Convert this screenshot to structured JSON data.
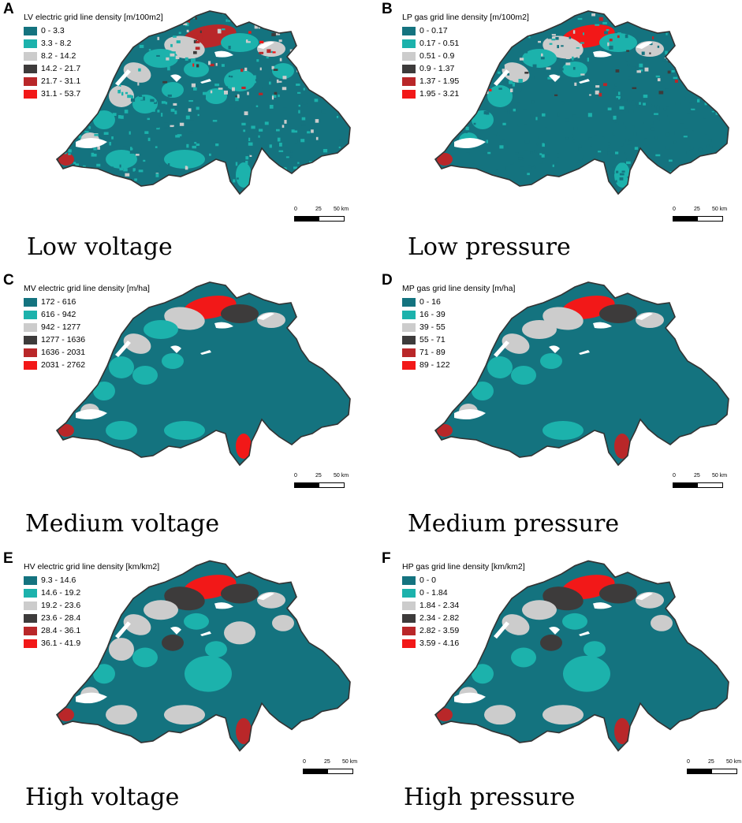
{
  "colors": {
    "c0": "#14737f",
    "c1": "#1cb2ac",
    "c2": "#cccccc",
    "c3": "#3d3b3b",
    "c4": "#b92729",
    "c5": "#f21818",
    "lake": "#ffffff",
    "border": "#333333"
  },
  "scalebar": {
    "l0": "0",
    "l25": "25",
    "l50": "50 km"
  },
  "panels": [
    {
      "letter": "A",
      "title": "LV electric grid line density [m/100m2]",
      "caption": "Low voltage",
      "classes": [
        "0 - 3.3",
        "3.3 - 8.2",
        "8.2 - 14.2",
        "14.2 - 21.7",
        "21.7 - 31.1",
        "31.1 - 53.7"
      ]
    },
    {
      "letter": "B",
      "title": "LP gas grid line density [m/100m2]",
      "caption": "Low pressure",
      "classes": [
        "0 - 0.17",
        "0.17 - 0.51",
        "0.51 - 0.9",
        "0.9 - 1.37",
        "1.37 - 1.95",
        "1.95 - 3.21"
      ]
    },
    {
      "letter": "C",
      "title": "MV electric grid line density [m/ha]",
      "caption": "Medium voltage",
      "classes": [
        "172 - 616",
        "616 - 942",
        "942 - 1277",
        "1277 - 1636",
        "1636 - 2031",
        "2031 - 2762"
      ]
    },
    {
      "letter": "D",
      "title": "MP gas grid line density [m/ha]",
      "caption": "Medium pressure",
      "classes": [
        "0 - 16",
        "16 - 39",
        "39 - 55",
        "55 - 71",
        "71 - 89",
        "89 - 122"
      ]
    },
    {
      "letter": "E",
      "title": "HV electric grid line density [km/km2]",
      "caption": "High voltage",
      "classes": [
        "9.3 - 14.6",
        "14.6 - 19.2",
        "19.2 - 23.6",
        "23.6 - 28.4",
        "28.4 - 36.1",
        "36.1 - 41.9"
      ]
    },
    {
      "letter": "F",
      "title": "HP gas grid line density [km/km2]",
      "caption": "High pressure",
      "classes": [
        "0 - 0",
        "0 - 1.84",
        "1.84 - 2.34",
        "2.34 - 2.82",
        "2.82 - 3.59",
        "3.59 - 4.16"
      ]
    }
  ]
}
